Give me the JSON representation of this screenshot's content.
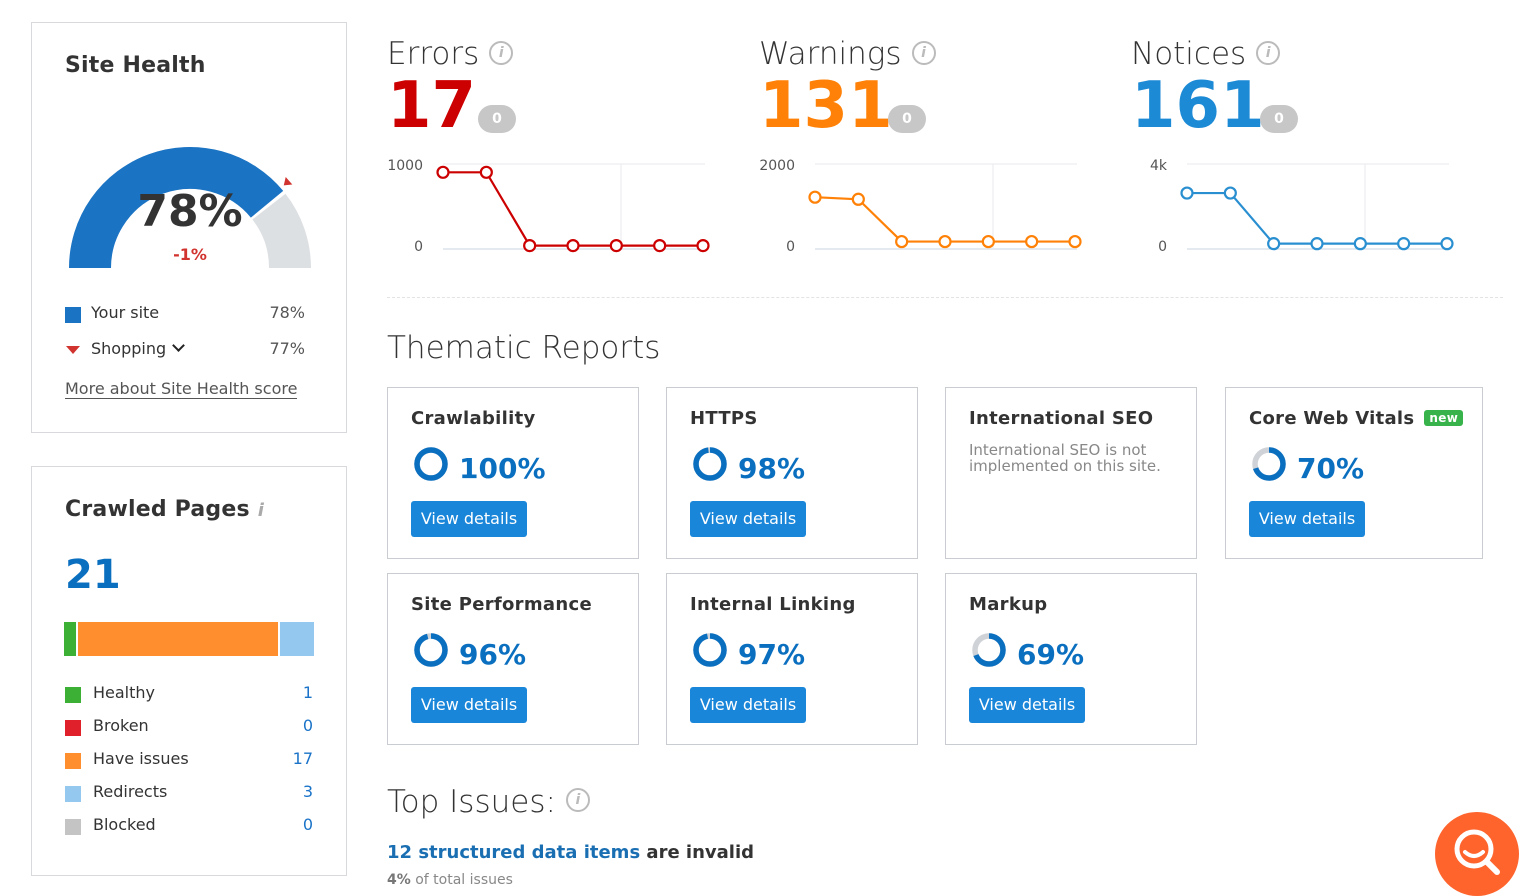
{
  "site_health": {
    "title": "Site Health",
    "score": "78%",
    "delta": "-1%",
    "score_value": 0.78,
    "competitor_value": 0.77,
    "legend": [
      {
        "label": "Your site",
        "value": "78%",
        "color": "#1b73c3"
      },
      {
        "label": "Shopping",
        "value": "77%",
        "color": "#d1332f"
      }
    ],
    "more_link": "More about Site Health score"
  },
  "crawled_pages": {
    "title": "Crawled Pages",
    "info_icon": "i",
    "count": "21",
    "bar": [
      {
        "name": "Healthy",
        "value": 1,
        "color": "#3cb034"
      },
      {
        "name": "Have issues",
        "value": 17,
        "color": "#ff8f2e"
      },
      {
        "name": "Redirects",
        "value": 3,
        "color": "#94c8ef"
      }
    ],
    "rows": [
      {
        "label": "Healthy",
        "value": "1",
        "color": "#3cb034"
      },
      {
        "label": "Broken",
        "value": "0",
        "color": "#e0202a"
      },
      {
        "label": "Have issues",
        "value": "17",
        "color": "#ff8f2e"
      },
      {
        "label": "Redirects",
        "value": "3",
        "color": "#94c8ef"
      },
      {
        "label": "Blocked",
        "value": "0",
        "color": "#c4c4c4"
      }
    ]
  },
  "metrics": [
    {
      "title": "Errors",
      "value": "17",
      "badge": "0",
      "color": "#cc0000"
    },
    {
      "title": "Warnings",
      "value": "131",
      "badge": "0",
      "color": "#ff8107"
    },
    {
      "title": "Notices",
      "value": "161",
      "badge": "0",
      "color": "#1d8ad6"
    }
  ],
  "chart_data": [
    {
      "type": "line",
      "title": "Errors",
      "ylim": [
        0,
        1000
      ],
      "yticks": [
        "1000",
        "0"
      ],
      "values": [
        900,
        900,
        17,
        17,
        17,
        17,
        17
      ],
      "color": "#cc0000"
    },
    {
      "type": "line",
      "title": "Warnings",
      "ylim": [
        0,
        2000
      ],
      "yticks": [
        "2000",
        "0"
      ],
      "values": [
        1200,
        1150,
        131,
        131,
        131,
        131,
        131
      ],
      "color": "#ff8107"
    },
    {
      "type": "line",
      "title": "Notices",
      "ylim": [
        0,
        4000
      ],
      "yticks": [
        "4k",
        "0"
      ],
      "values": [
        2600,
        2600,
        161,
        161,
        161,
        161,
        161
      ],
      "color": "#2a8fd0"
    }
  ],
  "thematic": {
    "title": "Thematic Reports",
    "view_label": "View details",
    "reports": [
      {
        "title": "Crawlability",
        "pct": "100%",
        "value": 1.0
      },
      {
        "title": "HTTPS",
        "pct": "98%",
        "value": 0.98
      },
      {
        "title": "International SEO",
        "desc": "International SEO is not implemented on this site."
      },
      {
        "title": "Core Web Vitals",
        "badge": "new",
        "pct": "70%",
        "value": 0.7
      },
      {
        "title": "Site Performance",
        "pct": "96%",
        "value": 0.96
      },
      {
        "title": "Internal Linking",
        "pct": "97%",
        "value": 0.97
      },
      {
        "title": "Markup",
        "pct": "69%",
        "value": 0.69
      }
    ]
  },
  "top_issues": {
    "title": "Top Issues:",
    "issue_link": "12 structured data items",
    "issue_rest": " are invalid",
    "sub_pct": "4%",
    "sub_rest": " of total issues"
  },
  "icons": {
    "fab": "search-icon",
    "info": "info-icon"
  }
}
